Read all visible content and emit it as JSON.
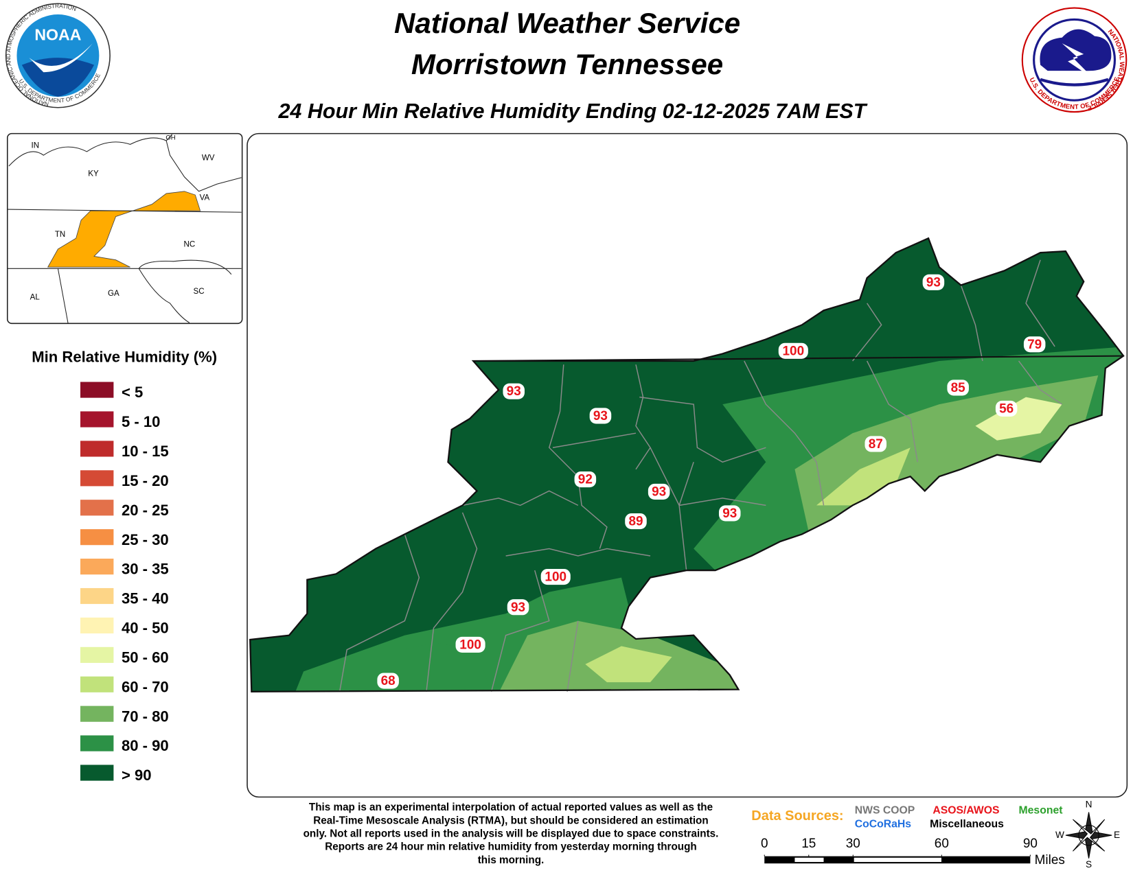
{
  "header": {
    "title": "National Weather Service",
    "subtitle": "Morristown Tennessee",
    "map_title": "24 Hour Min Relative Humidity Ending 02-12-2025 7AM EST"
  },
  "logos": {
    "noaa": {
      "text": "NOAA",
      "ring": "NATIONAL OCEANIC AND ATMOSPHERIC ADMINISTRATION",
      "department": "U.S. DEPARTMENT OF COMMERCE"
    },
    "nws": {
      "ring": "NATIONAL WEATHER SERVICE",
      "department": "U.S. DEPARTMENT OF COMMERCE"
    }
  },
  "inset": {
    "states": [
      "IN",
      "OH",
      "KY",
      "WV",
      "VA",
      "TN",
      "NC",
      "AL",
      "GA",
      "SC"
    ]
  },
  "legend": {
    "title": "Min Relative Humidity (%)",
    "items": [
      {
        "label": "< 5",
        "color": "#8c0d26"
      },
      {
        "label": "5 - 10",
        "color": "#a5142c"
      },
      {
        "label": "10 - 15",
        "color": "#bf2b2b"
      },
      {
        "label": "15 - 20",
        "color": "#d54a35"
      },
      {
        "label": "20 - 25",
        "color": "#e3714a"
      },
      {
        "label": "25 - 30",
        "color": "#f68f43"
      },
      {
        "label": "30 - 35",
        "color": "#fba95a"
      },
      {
        "label": "35 - 40",
        "color": "#fdd587"
      },
      {
        "label": "40 - 50",
        "color": "#fff3b3"
      },
      {
        "label": "50 - 60",
        "color": "#e5f5a4"
      },
      {
        "label": "60 - 70",
        "color": "#c1e27b"
      },
      {
        "label": "70 - 80",
        "color": "#74b45f"
      },
      {
        "label": "80 - 90",
        "color": "#2c9146"
      },
      {
        "label": "> 90",
        "color": "#075a2e"
      }
    ]
  },
  "stations": {
    "values": [
      93,
      100,
      79,
      93,
      93,
      85,
      56,
      87,
      92,
      93,
      93,
      89,
      100,
      93,
      100,
      68
    ]
  },
  "footer": {
    "note": [
      "This map is an experimental interpolation of actual reported values as well as the",
      "Real-Time Mesoscale Analysis (RTMA), but should be considered an estimation",
      "only. Not all reports used in the analysis will be displayed due to space constraints.",
      "Reports are 24 hour min relative humidity from yesterday morning through",
      "this morning."
    ],
    "data_sources": {
      "label": "Data Sources:",
      "items": [
        {
          "name": "NWS COOP",
          "color": "#777777"
        },
        {
          "name": "ASOS/AWOS",
          "color": "#e8141b"
        },
        {
          "name": "Mesonet",
          "color": "#2ca02c"
        },
        {
          "name": "CoCoRaHs",
          "color": "#1f6fe0"
        },
        {
          "name": "Miscellaneous",
          "color": "#000000"
        }
      ]
    },
    "scale": {
      "ticks": [
        0,
        15,
        30,
        60,
        90
      ],
      "unit": "Miles"
    },
    "compass": [
      "N",
      "E",
      "S",
      "W"
    ]
  }
}
